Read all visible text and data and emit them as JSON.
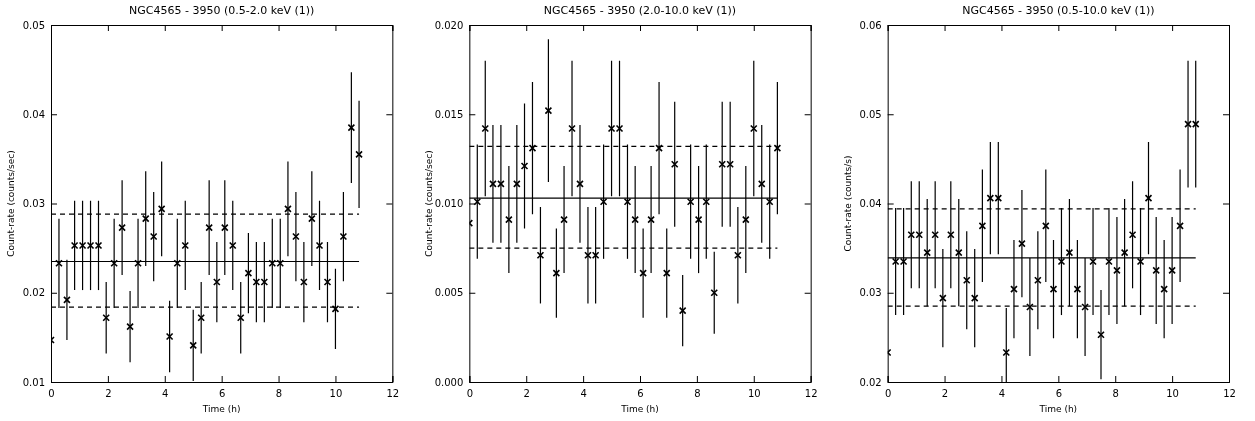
{
  "chart_data": [
    {
      "type": "scatter",
      "title": "NGC4565 - 3950 (0.5-2.0 keV (1))",
      "xlabel": "Time (h)",
      "ylabel": "Count-rate (counts/sec)",
      "marker": "cross",
      "xlim": [
        0,
        12
      ],
      "xticks": [
        0,
        2,
        4,
        6,
        8,
        10,
        12
      ],
      "ylim": [
        0.01,
        0.05
      ],
      "yticks": [
        0.01,
        0.02,
        0.03,
        0.04,
        0.05
      ],
      "x": [
        0,
        0.28,
        0.56,
        0.83,
        1.11,
        1.39,
        1.67,
        1.94,
        2.22,
        2.5,
        2.78,
        3.06,
        3.33,
        3.61,
        3.89,
        4.17,
        4.44,
        4.72,
        5,
        5.28,
        5.56,
        5.83,
        6.11,
        6.39,
        6.67,
        6.94,
        7.22,
        7.5,
        7.78,
        8.06,
        8.33,
        8.61,
        8.89,
        9.17,
        9.44,
        9.72,
        10,
        10.28,
        10.56,
        10.83
      ],
      "values": [
        0.0147,
        0.0233,
        0.0192,
        0.0253,
        0.0253,
        0.0253,
        0.0253,
        0.0172,
        0.0233,
        0.0273,
        0.0162,
        0.0233,
        0.0283,
        0.0263,
        0.0294,
        0.0151,
        0.0233,
        0.0253,
        0.0141,
        0.0172,
        0.0273,
        0.0212,
        0.0273,
        0.0253,
        0.0172,
        0.0222,
        0.0212,
        0.0212,
        0.0233,
        0.0233,
        0.0294,
        0.0263,
        0.0212,
        0.0283,
        0.0253,
        0.0212,
        0.0182,
        0.0263,
        0.0385,
        0.0355
      ],
      "errors": [
        null,
        0.005,
        0.0045,
        0.005,
        0.005,
        0.005,
        0.005,
        0.004,
        0.005,
        0.0053,
        0.004,
        0.005,
        0.0053,
        0.005,
        0.0053,
        0.004,
        0.005,
        0.005,
        0.004,
        0.004,
        0.0053,
        0.0045,
        0.0053,
        0.005,
        0.004,
        0.0045,
        0.0045,
        0.0045,
        0.005,
        0.005,
        0.0053,
        0.005,
        0.0045,
        0.0053,
        0.005,
        0.0045,
        0.0045,
        0.005,
        0.0062,
        0.006
      ],
      "color": "#000000",
      "ref_lines": [
        {
          "axis": "y",
          "value": 0.0235,
          "line_style": "solid"
        },
        {
          "axis": "y",
          "value": 0.0288,
          "line_style": "dashed"
        },
        {
          "axis": "y",
          "value": 0.0184,
          "line_style": "dashed"
        }
      ]
    },
    {
      "type": "scatter",
      "title": "NGC4565 - 3950 (2.0-10.0 keV (1))",
      "xlabel": "Time (h)",
      "ylabel": "Count-rate (counts/sec)",
      "marker": "cross",
      "xlim": [
        0,
        12
      ],
      "xticks": [
        0,
        2,
        4,
        6,
        8,
        10,
        12
      ],
      "ylim": [
        0,
        0.02
      ],
      "yticks": [
        {
          "value": 0,
          "label": "0.000"
        },
        {
          "value": 0.005,
          "label": "0.005"
        },
        {
          "value": 0.01,
          "label": "0.010"
        },
        {
          "value": 0.015,
          "label": "0.015"
        },
        {
          "value": 0.02,
          "label": "0.020"
        }
      ],
      "x": [
        0,
        0.28,
        0.56,
        0.83,
        1.11,
        1.39,
        1.67,
        1.94,
        2.22,
        2.5,
        2.78,
        3.06,
        3.33,
        3.61,
        3.89,
        4.17,
        4.44,
        4.72,
        5,
        5.28,
        5.56,
        5.83,
        6.11,
        6.39,
        6.67,
        6.94,
        7.22,
        7.5,
        7.78,
        8.06,
        8.33,
        8.61,
        8.89,
        9.17,
        9.44,
        9.72,
        10,
        10.28,
        10.56,
        10.83
      ],
      "values": [
        0.0089,
        0.0101,
        0.0142,
        0.0111,
        0.0111,
        0.0091,
        0.0111,
        0.0121,
        0.0131,
        0.0071,
        0.0152,
        0.0061,
        0.0091,
        0.0142,
        0.0111,
        0.0071,
        0.0071,
        0.0101,
        0.0142,
        0.0142,
        0.0101,
        0.0091,
        0.0061,
        0.0091,
        0.0131,
        0.0061,
        0.0122,
        0.004,
        0.0101,
        0.0091,
        0.0101,
        0.005,
        0.0122,
        0.0122,
        0.0071,
        0.0091,
        0.0142,
        0.0111,
        0.0101,
        0.0131
      ],
      "errors": [
        null,
        0.0032,
        0.0038,
        0.0033,
        0.0033,
        0.003,
        0.0033,
        0.0035,
        0.0037,
        0.0027,
        0.004,
        0.0025,
        0.003,
        0.0038,
        0.0033,
        0.0027,
        0.0027,
        0.0032,
        0.0038,
        0.0038,
        0.0032,
        0.003,
        0.0025,
        0.003,
        0.0037,
        0.0025,
        0.0035,
        0.002,
        0.0032,
        0.003,
        0.0032,
        0.0023,
        0.0035,
        0.0035,
        0.0027,
        0.003,
        0.0038,
        0.0033,
        0.0032,
        0.0037
      ],
      "color": "#000000",
      "ref_lines": [
        {
          "axis": "y",
          "value": 0.0103,
          "line_style": "solid"
        },
        {
          "axis": "y",
          "value": 0.0132,
          "line_style": "dashed"
        },
        {
          "axis": "y",
          "value": 0.0075,
          "line_style": "dashed"
        }
      ]
    },
    {
      "type": "scatter",
      "title": "NGC4565 - 3950 (0.5-10.0 keV (1))",
      "xlabel": "Time (h)",
      "ylabel": "Count-rate (counts/s)",
      "marker": "cross",
      "xlim": [
        0,
        12
      ],
      "xticks": [
        0,
        2,
        4,
        6,
        8,
        10,
        12
      ],
      "ylim": [
        0.02,
        0.06
      ],
      "yticks": [
        0.02,
        0.03,
        0.04,
        0.05,
        0.06
      ],
      "x": [
        0,
        0.28,
        0.56,
        0.83,
        1.11,
        1.39,
        1.67,
        1.94,
        2.22,
        2.5,
        2.78,
        3.06,
        3.33,
        3.61,
        3.89,
        4.17,
        4.44,
        4.72,
        5,
        5.28,
        5.56,
        5.83,
        6.11,
        6.39,
        6.67,
        6.94,
        7.22,
        7.5,
        7.78,
        8.06,
        8.33,
        8.61,
        8.89,
        9.17,
        9.44,
        9.72,
        10,
        10.28,
        10.56,
        10.83
      ],
      "values": [
        0.0233,
        0.0335,
        0.0335,
        0.0365,
        0.0365,
        0.0345,
        0.0365,
        0.0294,
        0.0365,
        0.0345,
        0.0314,
        0.0294,
        0.0375,
        0.0406,
        0.0406,
        0.0233,
        0.0304,
        0.0355,
        0.0284,
        0.0314,
        0.0375,
        0.0304,
        0.0335,
        0.0345,
        0.0304,
        0.0284,
        0.0335,
        0.0253,
        0.0335,
        0.0325,
        0.0345,
        0.0365,
        0.0335,
        0.0406,
        0.0325,
        0.0304,
        0.0325,
        0.0375,
        0.0489,
        0.0489
      ],
      "errors": [
        null,
        0.006,
        0.006,
        0.006,
        0.006,
        0.006,
        0.006,
        0.0055,
        0.006,
        0.006,
        0.0055,
        0.0055,
        0.0063,
        0.0063,
        0.0063,
        [
          0.02,
          0.0283
        ],
        0.0055,
        0.006,
        0.0055,
        0.0055,
        0.0063,
        0.0055,
        0.006,
        0.006,
        0.0055,
        0.0055,
        0.006,
        0.005,
        0.006,
        0.006,
        0.006,
        0.006,
        0.006,
        0.0063,
        0.006,
        0.0055,
        0.006,
        0.0063,
        0.0071,
        0.0071
      ],
      "color": "#000000",
      "ref_lines": [
        {
          "axis": "y",
          "value": 0.0339,
          "line_style": "solid"
        },
        {
          "axis": "y",
          "value": 0.0394,
          "line_style": "dashed"
        },
        {
          "axis": "y",
          "value": 0.0285,
          "line_style": "dashed"
        }
      ]
    }
  ]
}
